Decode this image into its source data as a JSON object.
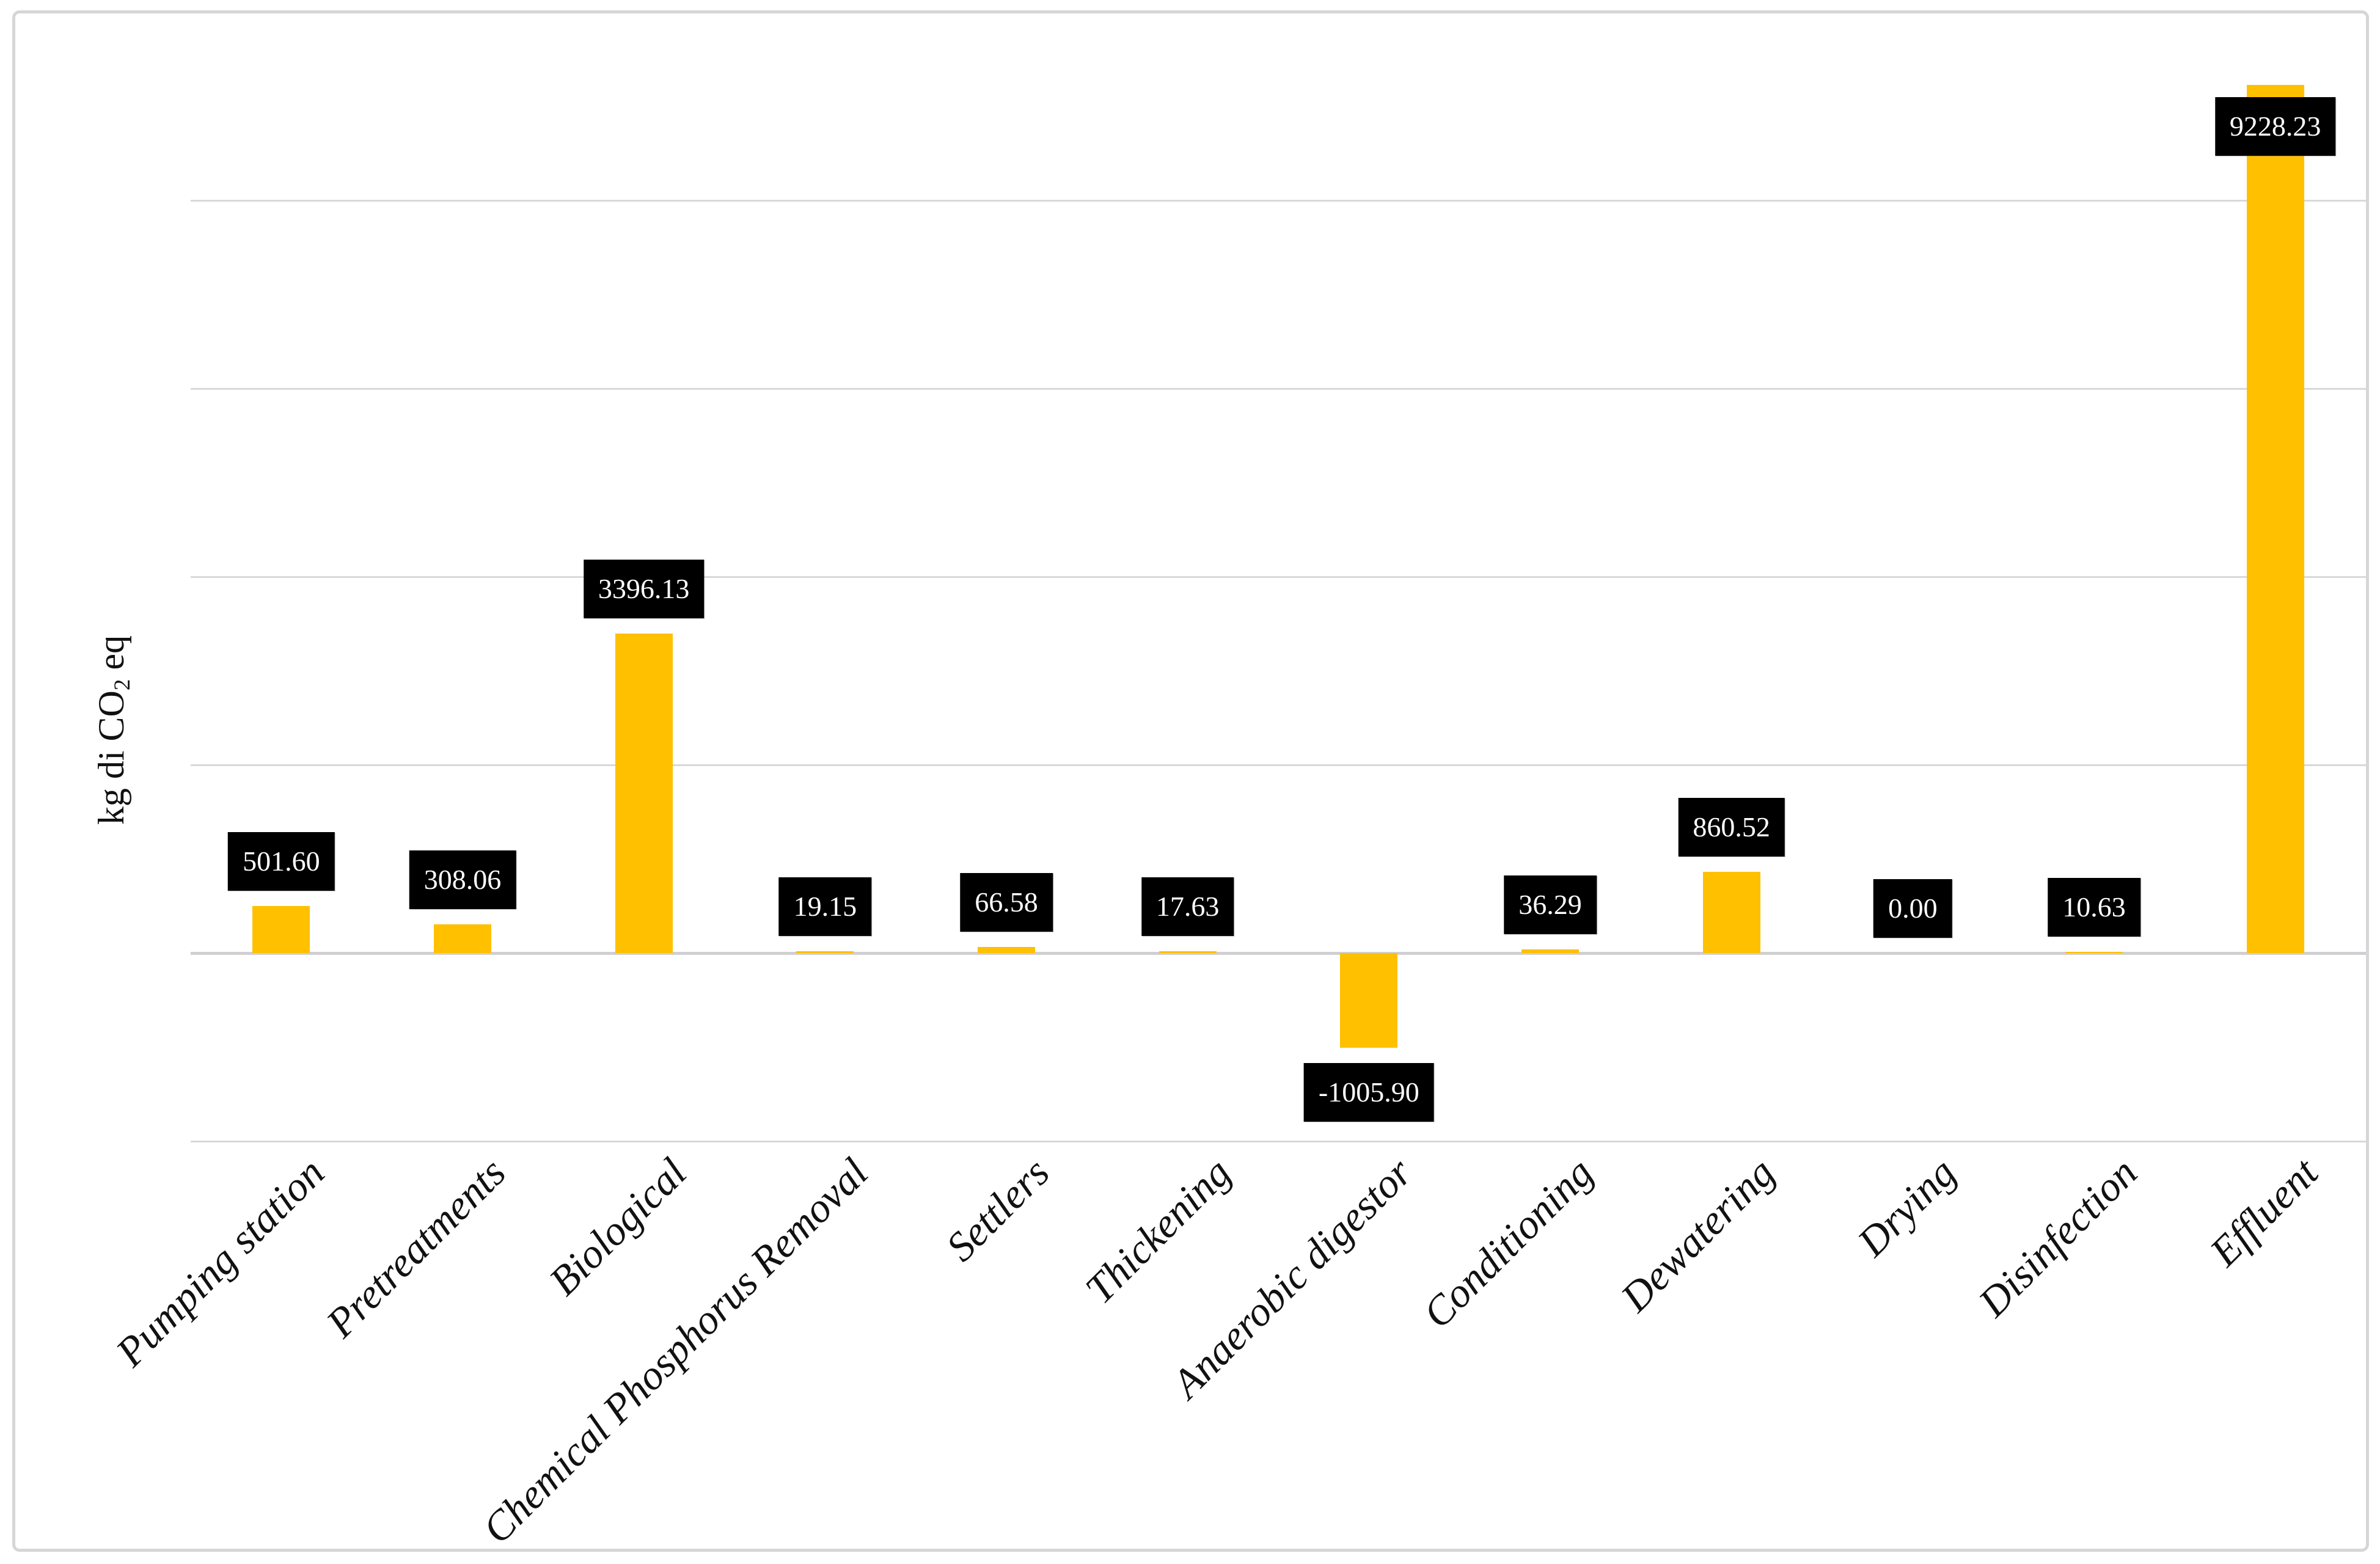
{
  "chart_data": {
    "type": "bar",
    "title": "",
    "categories": [
      "Pumping station",
      "Pretreatments",
      "Biological",
      "Chemical Phosphorus Removal",
      "Settlers",
      "Thickening",
      "Anaerobic digestor",
      "Conditioning",
      "Dewatering",
      "Drying",
      "Disinfection",
      "Effluent"
    ],
    "values": [
      501.6,
      308.06,
      3396.13,
      19.15,
      66.58,
      17.63,
      -1005.9,
      36.29,
      860.52,
      0.0,
      10.63,
      9228.23
    ],
    "value_labels": [
      "501.60",
      "308.06",
      "3396.13",
      "19.15",
      "66.58",
      "17.63",
      "-1005.90",
      "36.29",
      "860.52",
      "0.00",
      "10.63",
      "9228.23"
    ],
    "ylabel_pre": "kg di CO",
    "ylabel_sub": "2",
    "ylabel_post": " eq",
    "xlabel": "",
    "ylim": [
      -2000,
      10000
    ],
    "gridline_step": 2000,
    "gridline_values": [
      8000,
      6000,
      4000,
      2000,
      -2000
    ],
    "grid": "horizontal",
    "legend_position": "none",
    "bar_color": "#FFC000",
    "data_label_bg": "#000000",
    "data_label_fg": "#FFFFFF",
    "gridline_color": "#D9D9D9",
    "axis_line_color": "#D0D0D3",
    "border_color": "#D6D6D8"
  }
}
